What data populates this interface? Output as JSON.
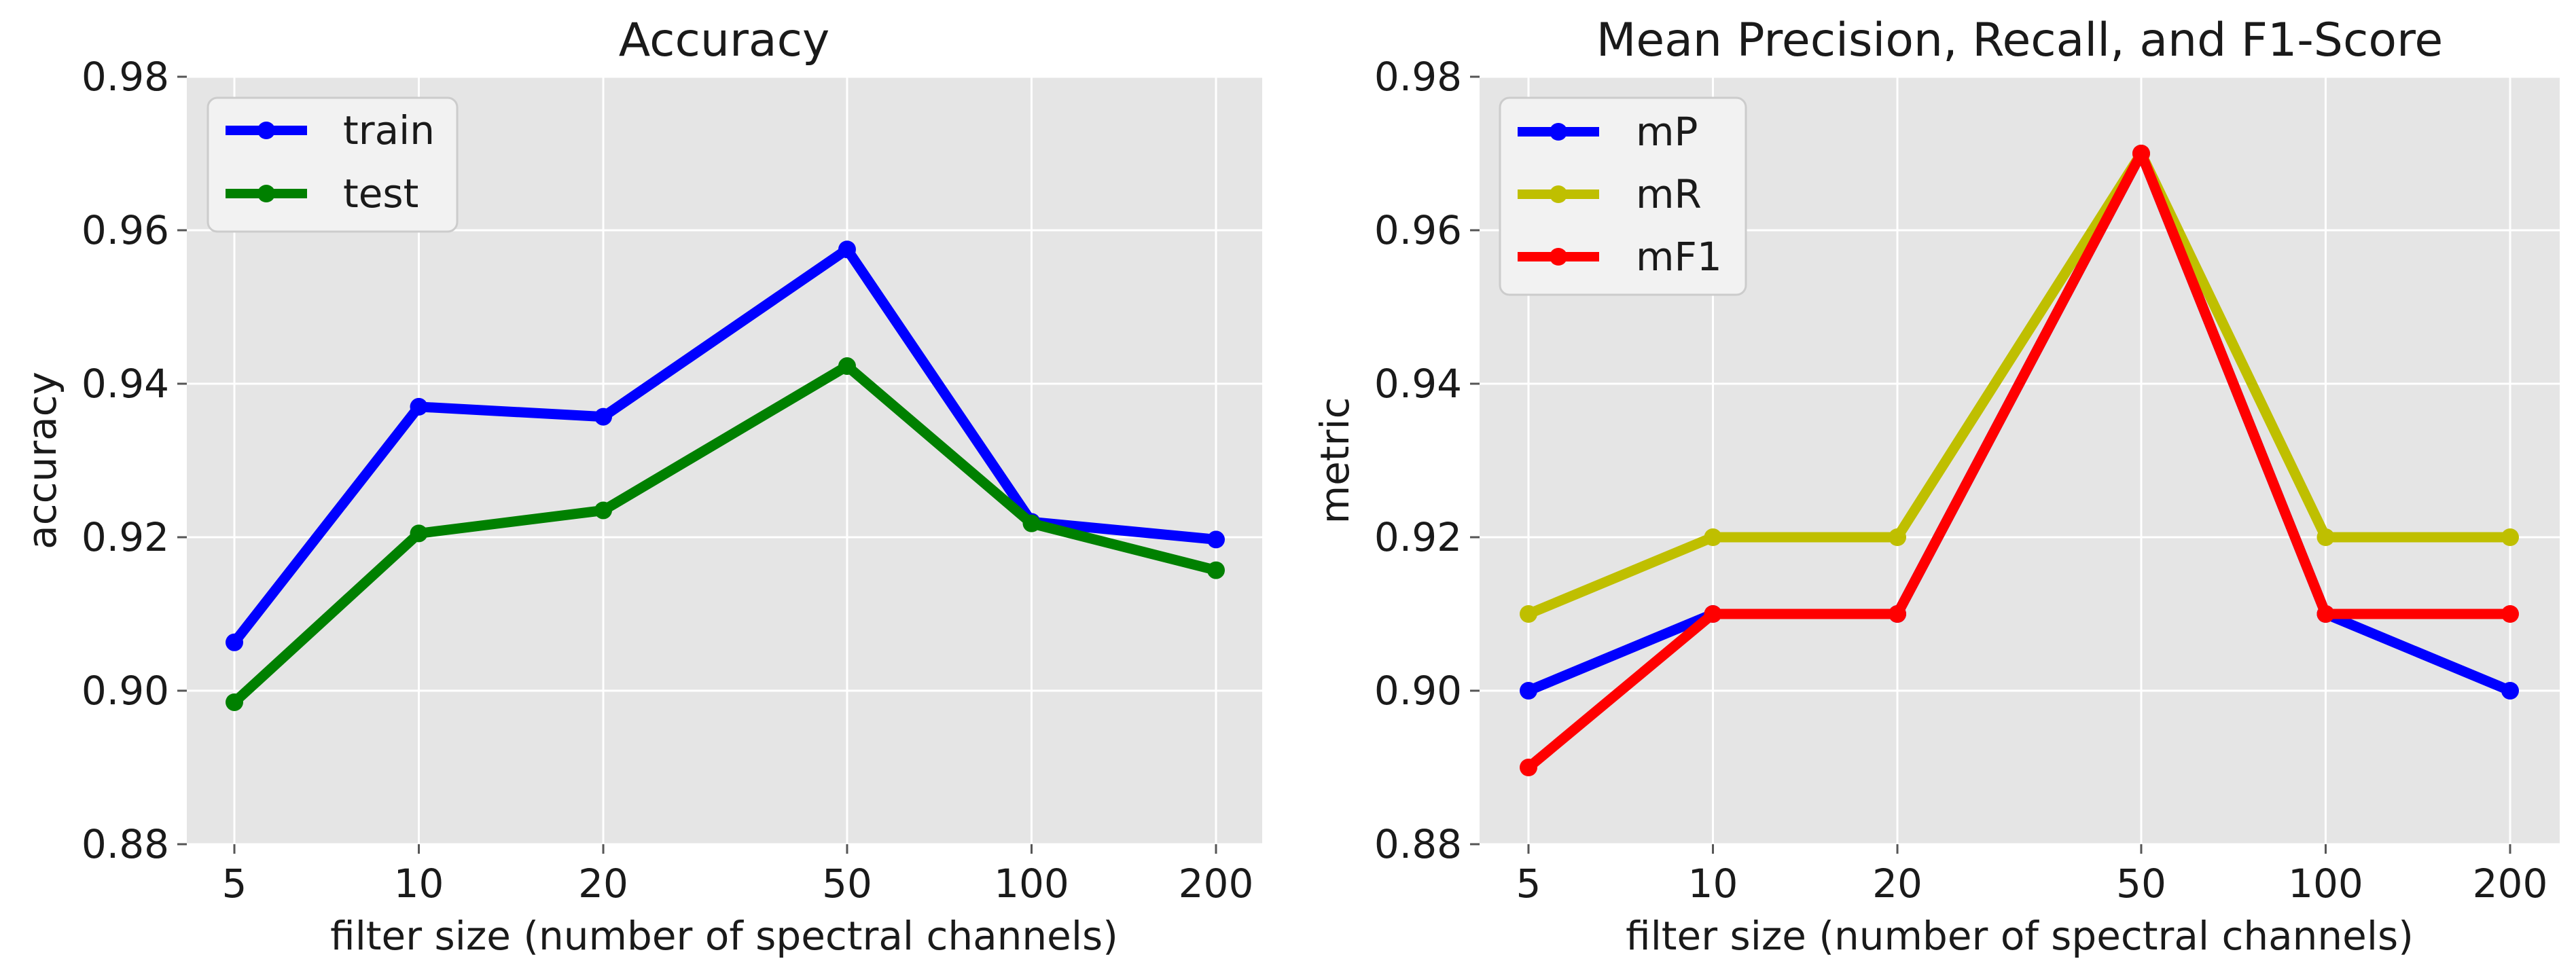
{
  "chart_data": [
    {
      "type": "line",
      "title": "Accuracy",
      "xlabel": "filter size (number of spectral channels)",
      "ylabel": "accuracy",
      "x": [
        5,
        10,
        20,
        50,
        100,
        200
      ],
      "xscale": "log",
      "ylim": [
        0.88,
        0.98
      ],
      "yticks": [
        "0.88",
        "0.90",
        "0.92",
        "0.94",
        "0.96",
        "0.98"
      ],
      "xticks": [
        "5",
        "10",
        "20",
        "50",
        "100",
        "200"
      ],
      "grid": true,
      "legend_position": "top-left",
      "series": [
        {
          "name": "train",
          "color": "#0000ff",
          "values": [
            0.9063,
            0.937,
            0.9357,
            0.9575,
            0.922,
            0.9197
          ]
        },
        {
          "name": "test",
          "color": "#008000",
          "values": [
            0.8985,
            0.9205,
            0.9235,
            0.9423,
            0.9218,
            0.9157
          ]
        }
      ]
    },
    {
      "type": "line",
      "title": "Mean Precision, Recall, and F1-Score",
      "xlabel": "filter size (number of spectral channels)",
      "ylabel": "metric",
      "x": [
        5,
        10,
        20,
        50,
        100,
        200
      ],
      "xscale": "log",
      "ylim": [
        0.88,
        0.98
      ],
      "yticks": [
        "0.88",
        "0.90",
        "0.92",
        "0.94",
        "0.96",
        "0.98"
      ],
      "xticks": [
        "5",
        "10",
        "20",
        "50",
        "100",
        "200"
      ],
      "grid": true,
      "legend_position": "top-left",
      "series": [
        {
          "name": "mP",
          "color": "#0000ff",
          "values": [
            0.9,
            0.91,
            0.91,
            0.97,
            0.91,
            0.9
          ]
        },
        {
          "name": "mR",
          "color": "#bfbf00",
          "values": [
            0.91,
            0.92,
            0.92,
            0.97,
            0.92,
            0.92
          ]
        },
        {
          "name": "mF1",
          "color": "#ff0000",
          "values": [
            0.89,
            0.91,
            0.91,
            0.97,
            0.91,
            0.91
          ]
        }
      ]
    }
  ]
}
